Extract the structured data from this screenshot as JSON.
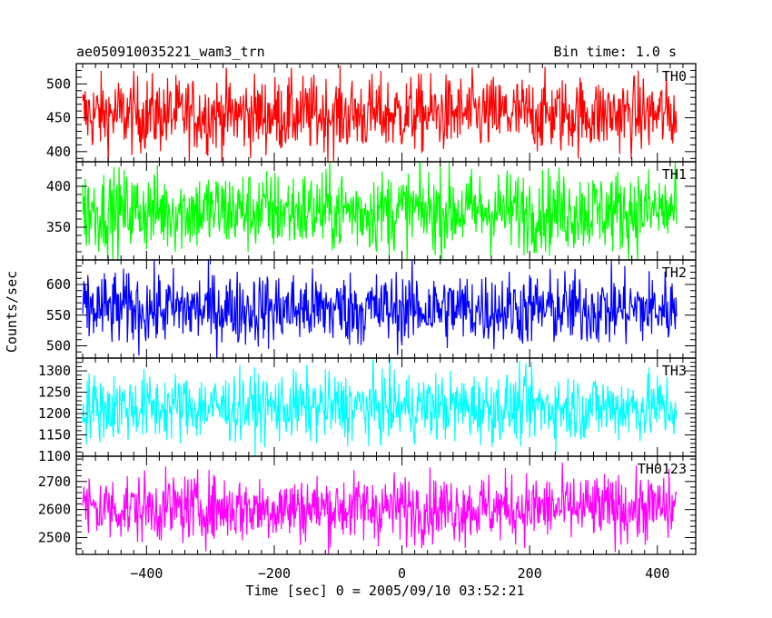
{
  "header": {
    "left_title": "ae050910035221_wam3_trn",
    "right_title": "Bin time: 1.0 s"
  },
  "chart_data": {
    "type": "line",
    "title": "ae050910035221_wam3_trn",
    "subtitle": "Bin time: 1.0 s",
    "xlabel": "Time [sec] 0 = 2005/09/10 03:52:21",
    "ylabel": "Counts/sec",
    "xlim": [
      -510,
      460
    ],
    "x_ticks": [
      -400,
      -200,
      0,
      200,
      400
    ],
    "x_tick_labels": [
      "−400",
      "−200",
      "0",
      "200",
      "400"
    ],
    "x_range": [
      -500,
      430
    ],
    "bin_time_s": 1.0,
    "grid": false,
    "panels": [
      {
        "name": "TH0",
        "color": "#ff0000",
        "ylim": [
          385,
          530
        ],
        "yticks": [
          400,
          450,
          500
        ],
        "mean": 455,
        "noise": 28
      },
      {
        "name": "TH1",
        "color": "#00ff00",
        "ylim": [
          310,
          430
        ],
        "yticks": [
          350,
          400
        ],
        "mean": 370,
        "noise": 25
      },
      {
        "name": "TH2",
        "color": "#0000ff",
        "ylim": [
          480,
          640
        ],
        "yticks": [
          500,
          550,
          600
        ],
        "mean": 560,
        "noise": 30
      },
      {
        "name": "TH3",
        "color": "#00ffff",
        "ylim": [
          1100,
          1330
        ],
        "yticks": [
          1100,
          1150,
          1200,
          1250,
          1300
        ],
        "mean": 1215,
        "noise": 40
      },
      {
        "name": "TH0123",
        "color": "#ff00ff",
        "ylim": [
          2440,
          2790
        ],
        "yticks": [
          2500,
          2600,
          2700
        ],
        "mean": 2605,
        "noise": 60
      }
    ]
  }
}
